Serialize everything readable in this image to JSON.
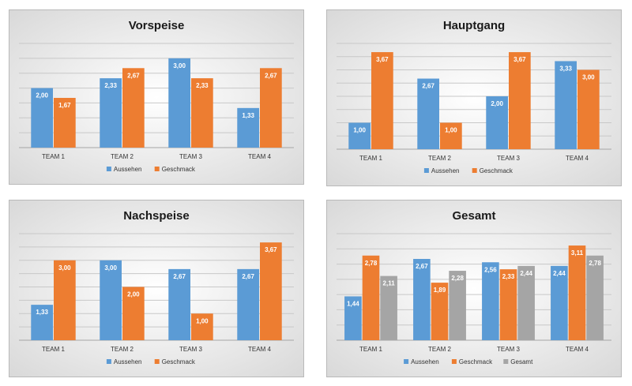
{
  "colors": {
    "aussehen": "#5b9bd5",
    "geschmack": "#ed7d31",
    "gesamt": "#a5a5a5"
  },
  "chart_data": [
    {
      "id": "vorspeise",
      "type": "bar",
      "title": "Vorspeise",
      "categories": [
        "TEAM 1",
        "TEAM 2",
        "TEAM 3",
        "TEAM 4"
      ],
      "ylim": [
        0,
        3.5
      ],
      "legend": "bottom",
      "grid": true,
      "series": [
        {
          "name": "Aussehen",
          "color": "#5b9bd5",
          "values": [
            2.0,
            2.33,
            3.0,
            1.33
          ],
          "labels": [
            "2,00",
            "2,33",
            "3,00",
            "1,33"
          ]
        },
        {
          "name": "Geschmack",
          "color": "#ed7d31",
          "values": [
            1.67,
            2.67,
            2.33,
            2.67
          ],
          "labels": [
            "1,67",
            "2,67",
            "2,33",
            "2,67"
          ]
        }
      ]
    },
    {
      "id": "hauptgang",
      "type": "bar",
      "title": "Hauptgang",
      "categories": [
        "TEAM 1",
        "TEAM 2",
        "TEAM 3",
        "TEAM 4"
      ],
      "ylim": [
        0,
        4
      ],
      "legend": "bottom",
      "grid": true,
      "series": [
        {
          "name": "Aussehen",
          "color": "#5b9bd5",
          "values": [
            1.0,
            2.67,
            2.0,
            3.33
          ],
          "labels": [
            "1,00",
            "2,67",
            "2,00",
            "3,33"
          ]
        },
        {
          "name": "Geschmack",
          "color": "#ed7d31",
          "values": [
            3.67,
            1.0,
            3.67,
            3.0
          ],
          "labels": [
            "3,67",
            "1,00",
            "3,67",
            "3,00"
          ]
        }
      ]
    },
    {
      "id": "nachspeise",
      "type": "bar",
      "title": "Nachspeise",
      "categories": [
        "TEAM 1",
        "TEAM 2",
        "TEAM 3",
        "TEAM 4"
      ],
      "ylim": [
        0,
        4
      ],
      "legend": "bottom",
      "grid": true,
      "series": [
        {
          "name": "Aussehen",
          "color": "#5b9bd5",
          "values": [
            1.33,
            3.0,
            2.67,
            2.67
          ],
          "labels": [
            "1,33",
            "3,00",
            "2,67",
            "2,67"
          ]
        },
        {
          "name": "Geschmack",
          "color": "#ed7d31",
          "values": [
            3.0,
            2.0,
            1.0,
            3.67
          ],
          "labels": [
            "3,00",
            "2,00",
            "1,00",
            "3,67"
          ]
        }
      ]
    },
    {
      "id": "gesamt",
      "type": "bar",
      "title": "Gesamt",
      "categories": [
        "TEAM 1",
        "TEAM 2",
        "TEAM 3",
        "TEAM 4"
      ],
      "ylim": [
        0,
        3.5
      ],
      "legend": "bottom",
      "grid": true,
      "series": [
        {
          "name": "Aussehen",
          "color": "#5b9bd5",
          "values": [
            1.44,
            2.67,
            2.56,
            2.44
          ],
          "labels": [
            "1,44",
            "2,67",
            "2,56",
            "2,44"
          ]
        },
        {
          "name": "Geschmack",
          "color": "#ed7d31",
          "values": [
            2.78,
            1.89,
            2.33,
            3.11
          ],
          "labels": [
            "2,78",
            "1,89",
            "2,33",
            "3,11"
          ]
        },
        {
          "name": "Gesamt",
          "color": "#a5a5a5",
          "values": [
            2.11,
            2.28,
            2.44,
            2.78
          ],
          "labels": [
            "2,11",
            "2,28",
            "2,44",
            "2,78"
          ]
        }
      ]
    }
  ]
}
